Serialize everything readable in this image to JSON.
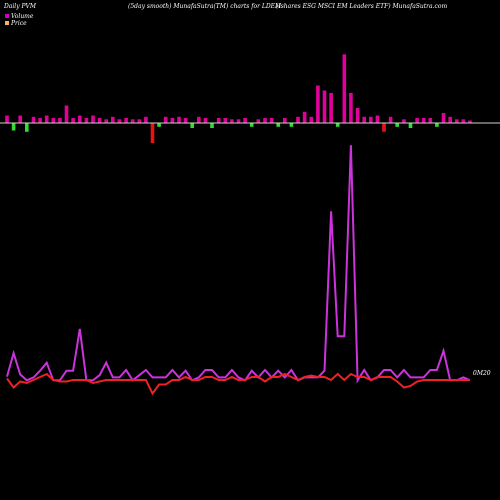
{
  "header": {
    "left": "Daily PVM",
    "center": "(5day smooth) MunafaSutra(TM) charts for LDEM",
    "right": "(Ishares ESG MSCI EM Leaders ETF) MunafaSutra.com"
  },
  "legend": [
    {
      "label": "Volume",
      "color": "#cc00cc"
    },
    {
      "label": "Price",
      "color": "#ffaa66"
    }
  ],
  "end_label": "0M20",
  "colors": {
    "background": "#000000",
    "up_bar": "#e0009a",
    "down_bar": "#33dd33",
    "red_bar": "#ee1111",
    "baseline": "#cfcfcf",
    "pvm_line": "#cc33dd",
    "price_line": "#ee2222"
  },
  "chart_data": {
    "type": "line",
    "title": "",
    "panels": [
      {
        "name": "volume-bars",
        "type": "bar",
        "unit": "relative",
        "values": [
          6,
          -6,
          6,
          -7,
          5,
          4,
          6,
          4,
          4,
          14,
          4,
          6,
          4,
          6,
          4,
          3,
          5,
          3,
          4,
          3,
          3,
          5,
          -16,
          -3,
          5,
          4,
          5,
          4,
          -4,
          5,
          4,
          -4,
          4,
          4,
          3,
          3,
          4,
          -3,
          3,
          4,
          4,
          -3,
          4,
          -3,
          5,
          9,
          5,
          30,
          26,
          24,
          -3,
          55,
          24,
          12,
          5,
          5,
          6,
          -7,
          5,
          -3,
          3,
          -4,
          4,
          4,
          4,
          -3,
          8,
          5,
          3,
          3,
          2
        ],
        "colors": [
          "up",
          "down",
          "up",
          "down",
          "up",
          "up",
          "up",
          "up",
          "up",
          "up",
          "up",
          "up",
          "up",
          "up",
          "up",
          "up",
          "up",
          "up",
          "up",
          "up",
          "up",
          "up",
          "red",
          "down",
          "up",
          "up",
          "up",
          "up",
          "down",
          "up",
          "up",
          "down",
          "up",
          "up",
          "up",
          "up",
          "up",
          "down",
          "up",
          "up",
          "up",
          "down",
          "up",
          "down",
          "up",
          "up",
          "up",
          "up",
          "up",
          "up",
          "down",
          "up",
          "up",
          "up",
          "up",
          "up",
          "up",
          "red",
          "up",
          "down",
          "up",
          "down",
          "up",
          "up",
          "up",
          "down",
          "up",
          "up",
          "up",
          "up",
          "up"
        ]
      },
      {
        "name": "pvm-line",
        "type": "line",
        "unit": "relative",
        "values": [
          25,
          57,
          28,
          20,
          24,
          33,
          44,
          20,
          20,
          33,
          33,
          90,
          20,
          20,
          27,
          44,
          24,
          24,
          34,
          20,
          27,
          34,
          24,
          24,
          24,
          34,
          24,
          33,
          20,
          24,
          34,
          34,
          24,
          24,
          34,
          24,
          20,
          33,
          24,
          34,
          24,
          33,
          24,
          34,
          20,
          24,
          24,
          24,
          33,
          250,
          80,
          80,
          340,
          20,
          34,
          20,
          24,
          34,
          34,
          24,
          34,
          24,
          24,
          24,
          34,
          34,
          60,
          20,
          20,
          24,
          20
        ]
      },
      {
        "name": "price-line",
        "type": "line",
        "unit": "relative",
        "values": [
          22,
          10,
          18,
          16,
          20,
          24,
          28,
          20,
          18,
          18,
          20,
          20,
          20,
          16,
          18,
          20,
          20,
          20,
          20,
          20,
          20,
          20,
          2,
          14,
          14,
          20,
          20,
          24,
          20,
          20,
          24,
          24,
          20,
          20,
          24,
          20,
          20,
          24,
          24,
          18,
          24,
          24,
          28,
          24,
          20,
          24,
          26,
          24,
          24,
          20,
          28,
          20,
          28,
          24,
          24,
          20,
          24,
          24,
          24,
          18,
          10,
          12,
          18,
          20,
          20,
          20,
          20,
          20,
          20,
          20,
          20
        ]
      }
    ]
  }
}
